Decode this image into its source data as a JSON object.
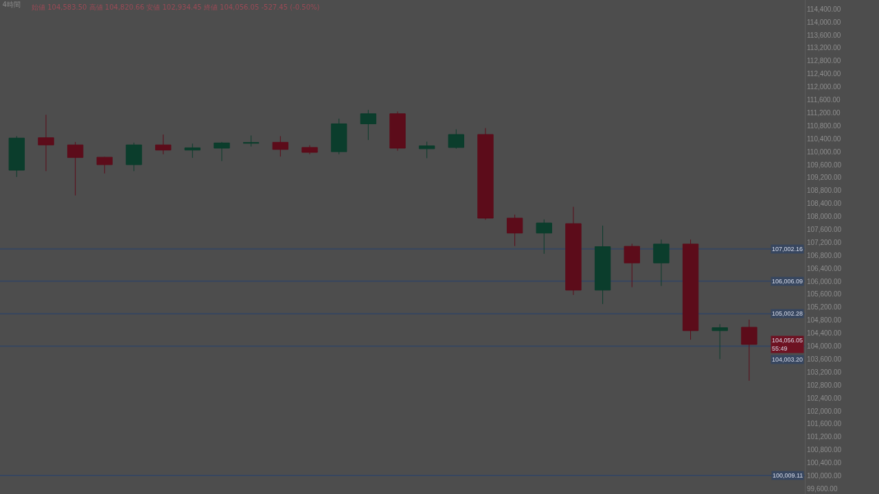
{
  "chart_data": {
    "type": "candlestick",
    "title": "4時間",
    "subtitle": "始値 104,583.50 高値 104,820.66 安値 102,934.45 終値 104,056.05 -527.45 (-0.50%)",
    "categories": [
      null,
      null,
      null,
      null,
      null,
      null,
      null,
      null,
      null,
      null,
      null,
      null,
      null,
      null,
      null,
      null,
      null,
      null,
      null,
      null,
      null,
      null,
      null,
      null,
      null,
      null
    ],
    "ohlc": [
      [
        109430,
        110480,
        109220,
        110420
      ],
      [
        110430,
        111140,
        109400,
        110210
      ],
      [
        110210,
        110300,
        108650,
        109820
      ],
      [
        109830,
        109840,
        109330,
        109600
      ],
      [
        109600,
        110280,
        109400,
        110210
      ],
      [
        110210,
        110530,
        109920,
        110050
      ],
      [
        110050,
        110250,
        109810,
        110120
      ],
      [
        110110,
        110300,
        109710,
        110270
      ],
      [
        110260,
        110500,
        110160,
        110280
      ],
      [
        110290,
        110480,
        109850,
        110070
      ],
      [
        110130,
        110200,
        109920,
        109980
      ],
      [
        110000,
        111020,
        109920,
        110860
      ],
      [
        110860,
        111290,
        110360,
        111170
      ],
      [
        111170,
        111240,
        110030,
        110110
      ],
      [
        110090,
        110310,
        109800,
        110180
      ],
      [
        110130,
        110690,
        110090,
        110530
      ],
      [
        110530,
        110730,
        107900,
        107950
      ],
      [
        107950,
        108060,
        107090,
        107490
      ],
      [
        107490,
        107910,
        106850,
        107800
      ],
      [
        107780,
        108300,
        105580,
        105730
      ],
      [
        105730,
        107720,
        105300,
        107070
      ],
      [
        107080,
        107160,
        105820,
        106570
      ],
      [
        106570,
        107290,
        105860,
        107150
      ],
      [
        107150,
        107290,
        104200,
        104480
      ],
      [
        104480,
        104680,
        103600,
        104570
      ],
      [
        104583.5,
        104820.66,
        102934.45,
        104056.05
      ]
    ],
    "colors": [
      "#0b3d2c",
      "#5c0c1a",
      "#5c0c1a",
      "#5c0c1a",
      "#0b3d2c",
      "#5c0c1a",
      "#0b3d2c",
      "#0b3d2c",
      "#0b3d2c",
      "#5c0c1a",
      "#5c0c1a",
      "#0b3d2c",
      "#0b3d2c",
      "#5c0c1a",
      "#0b3d2c",
      "#0b3d2c",
      "#5c0c1a",
      "#5c0c1a",
      "#0b3d2c",
      "#5c0c1a",
      "#0b3d2c",
      "#5c0c1a",
      "#0b3d2c",
      "#5c0c1a",
      "#0b3d2c",
      "#5c0c1a"
    ],
    "ylim": [
      99440,
      114680
    ],
    "yticks": [
      {
        "value": 99600,
        "label": "99,600.00"
      },
      {
        "value": 100000,
        "label": "100,000.00"
      },
      {
        "value": 100400,
        "label": "100,400.00"
      },
      {
        "value": 100800,
        "label": "100,800.00"
      },
      {
        "value": 101200,
        "label": "101,200.00"
      },
      {
        "value": 101600,
        "label": "101,600.00"
      },
      {
        "value": 102000,
        "label": "102,000.00"
      },
      {
        "value": 102400,
        "label": "102,400.00"
      },
      {
        "value": 102800,
        "label": "102,800.00"
      },
      {
        "value": 103200,
        "label": "103,200.00"
      },
      {
        "value": 103600,
        "label": "103,600.00"
      },
      {
        "value": 104000,
        "label": "104,000.00"
      },
      {
        "value": 104400,
        "label": "104,400.00"
      },
      {
        "value": 104800,
        "label": "104,800.00"
      },
      {
        "value": 105200,
        "label": "105,200.00"
      },
      {
        "value": 105600,
        "label": "105,600.00"
      },
      {
        "value": 106000,
        "label": "106,000.00"
      },
      {
        "value": 106400,
        "label": "106,400.00"
      },
      {
        "value": 106800,
        "label": "106,800.00"
      },
      {
        "value": 107200,
        "label": "107,200.00"
      },
      {
        "value": 107600,
        "label": "107,600.00"
      },
      {
        "value": 108000,
        "label": "108,000.00"
      },
      {
        "value": 108400,
        "label": "108,400.00"
      },
      {
        "value": 108800,
        "label": "108,800.00"
      },
      {
        "value": 109200,
        "label": "109,200.00"
      },
      {
        "value": 109600,
        "label": "109,600.00"
      },
      {
        "value": 110000,
        "label": "110,000.00"
      },
      {
        "value": 110400,
        "label": "110,400.00"
      },
      {
        "value": 110800,
        "label": "110,800.00"
      },
      {
        "value": 111200,
        "label": "111,200.00"
      },
      {
        "value": 111600,
        "label": "111,600.00"
      },
      {
        "value": 112000,
        "label": "112,000.00"
      },
      {
        "value": 112400,
        "label": "112,400.00"
      },
      {
        "value": 112800,
        "label": "112,800.00"
      },
      {
        "value": 113200,
        "label": "113,200.00"
      },
      {
        "value": 113600,
        "label": "113,600.00"
      },
      {
        "value": 114000,
        "label": "114,000.00"
      },
      {
        "value": 114400,
        "label": "114,400.00"
      }
    ],
    "ref_lines": [
      {
        "axis": "y",
        "value": 107002.16,
        "label": "107,002.16",
        "color": "#37465f"
      },
      {
        "axis": "y",
        "value": 106006.09,
        "label": "106,006.09",
        "color": "#37465f"
      },
      {
        "axis": "y",
        "value": 105002.28,
        "label": "105,002.28",
        "color": "#37465f"
      },
      {
        "axis": "y",
        "value": 104003.2,
        "label": "104,003.20",
        "color": "#37465f"
      },
      {
        "axis": "y",
        "value": 100009.11,
        "label": "100,009.11",
        "color": "#37465f"
      }
    ],
    "annotations": [
      {
        "text": "104,056.05\n55:49",
        "y": 104056.05
      }
    ]
  }
}
